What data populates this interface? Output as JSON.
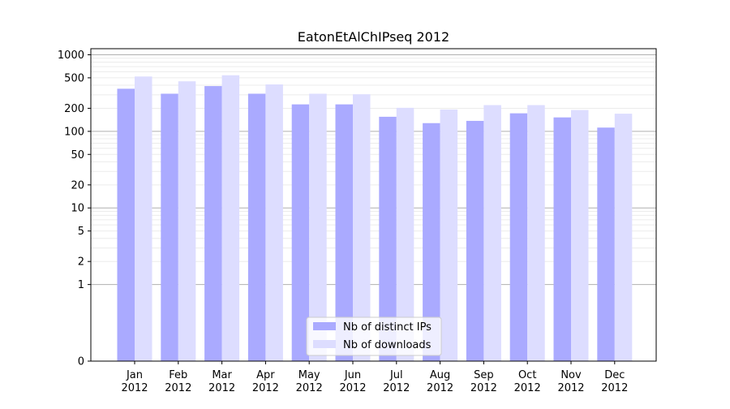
{
  "chart_data": {
    "type": "bar",
    "title": "EatonEtAlChIPseq 2012",
    "xlabel": "",
    "ylabel": "",
    "yscale": "symlog",
    "ylim": [
      0,
      1200
    ],
    "yticks": [
      0,
      1,
      2,
      5,
      10,
      20,
      50,
      100,
      200,
      500,
      1000
    ],
    "ytick_labels": [
      "0",
      "1",
      "2",
      "5",
      "10",
      "20",
      "50",
      "100",
      "200",
      "500",
      "1000"
    ],
    "categories": [
      "Jan\n2012",
      "Feb\n2012",
      "Mar\n2012",
      "Apr\n2012",
      "May\n2012",
      "Jun\n2012",
      "Jul\n2012",
      "Aug\n2012",
      "Sep\n2012",
      "Oct\n2012",
      "Nov\n2012",
      "Dec\n2012"
    ],
    "series": [
      {
        "name": "Nb of distinct IPs",
        "color": "#aaaaff",
        "values": [
          360,
          310,
          390,
          310,
          225,
          225,
          155,
          128,
          137,
          172,
          152,
          112
        ]
      },
      {
        "name": "Nb of downloads",
        "color": "#ddddff",
        "values": [
          520,
          450,
          540,
          410,
          310,
          305,
          203,
          193,
          220,
          220,
          190,
          170
        ]
      }
    ],
    "grid": true,
    "legend_position": "bottom-center"
  }
}
